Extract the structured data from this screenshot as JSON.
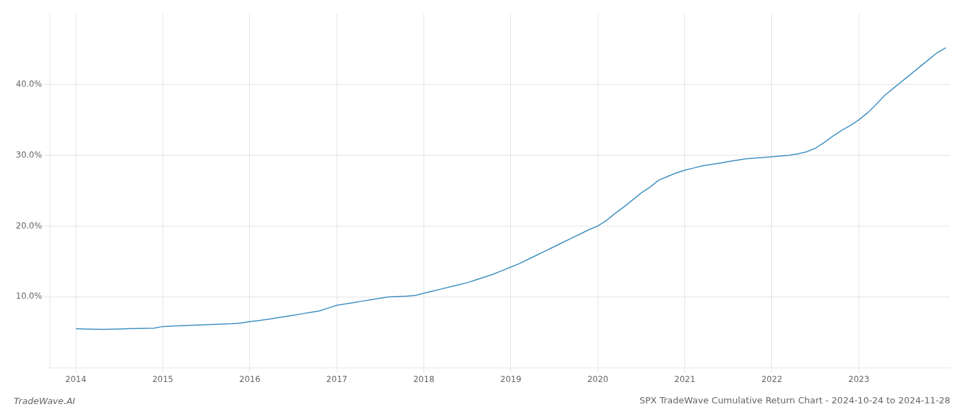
{
  "chart_data": {
    "type": "line",
    "title": "SPX TradeWave Cumulative Return Chart - 2024-10-24 to 2024-11-28",
    "annotations": [
      "TradeWave.AI"
    ],
    "x": [
      2014.0,
      2014.1,
      2014.2,
      2014.3,
      2014.4,
      2014.5,
      2014.6,
      2014.7,
      2014.8,
      2014.9,
      2015.0,
      2015.1,
      2015.2,
      2015.3,
      2015.4,
      2015.5,
      2015.6,
      2015.7,
      2015.8,
      2015.9,
      2016.0,
      2016.1,
      2016.2,
      2016.3,
      2016.4,
      2016.5,
      2016.6,
      2016.7,
      2016.8,
      2016.9,
      2017.0,
      2017.1,
      2017.2,
      2017.3,
      2017.4,
      2017.5,
      2017.6,
      2017.7,
      2017.8,
      2017.9,
      2018.0,
      2018.1,
      2018.2,
      2018.3,
      2018.4,
      2018.5,
      2018.6,
      2018.7,
      2018.8,
      2018.9,
      2019.0,
      2019.1,
      2019.2,
      2019.3,
      2019.4,
      2019.5,
      2019.6,
      2019.7,
      2019.8,
      2019.9,
      2020.0,
      2020.1,
      2020.2,
      2020.3,
      2020.4,
      2020.5,
      2020.6,
      2020.7,
      2020.8,
      2020.9,
      2021.0,
      2021.1,
      2021.2,
      2021.3,
      2021.4,
      2021.5,
      2021.6,
      2021.7,
      2021.8,
      2021.9,
      2022.0,
      2022.1,
      2022.2,
      2022.3,
      2022.4,
      2022.5,
      2022.6,
      2022.7,
      2022.8,
      2022.9,
      2023.0,
      2023.1,
      2023.2,
      2023.3,
      2023.4,
      2023.5,
      2023.6,
      2023.7,
      2023.8,
      2023.9,
      2024.0
    ],
    "values": [
      5.5,
      5.45,
      5.42,
      5.4,
      5.42,
      5.45,
      5.5,
      5.52,
      5.55,
      5.57,
      5.8,
      5.85,
      5.9,
      5.95,
      6.0,
      6.05,
      6.1,
      6.15,
      6.2,
      6.3,
      6.5,
      6.65,
      6.8,
      7.0,
      7.2,
      7.4,
      7.6,
      7.8,
      8.0,
      8.4,
      8.8,
      9.0,
      9.2,
      9.4,
      9.6,
      9.8,
      10.0,
      10.05,
      10.1,
      10.2,
      10.5,
      10.8,
      11.1,
      11.4,
      11.7,
      12.0,
      12.4,
      12.8,
      13.2,
      13.7,
      14.2,
      14.7,
      15.3,
      15.9,
      16.5,
      17.1,
      17.7,
      18.3,
      18.9,
      19.5,
      20.0,
      20.8,
      21.8,
      22.7,
      23.7,
      24.7,
      25.5,
      26.5,
      27.0,
      27.5,
      27.9,
      28.2,
      28.5,
      28.7,
      28.9,
      29.1,
      29.3,
      29.5,
      29.6,
      29.7,
      29.8,
      29.9,
      30.0,
      30.2,
      30.5,
      31.0,
      31.8,
      32.7,
      33.5,
      34.2,
      35.0,
      36.0,
      37.2,
      38.5,
      39.5,
      40.5,
      41.5,
      42.5,
      43.5,
      44.5,
      45.2
    ],
    "color": "#3d8fc1",
    "xlim": [
      2013.7,
      2024.05
    ],
    "xticks": [
      2014,
      2015,
      2016,
      2017,
      2018,
      2019,
      2020,
      2021,
      2022,
      2023
    ],
    "ylim": [
      0,
      50
    ],
    "yticks": [
      {
        "value": 10,
        "label": "10.0%"
      },
      {
        "value": 20,
        "label": "20.0%"
      },
      {
        "value": 30,
        "label": "30.0%"
      },
      {
        "value": 40,
        "label": "40.0%"
      }
    ],
    "grid": true
  }
}
